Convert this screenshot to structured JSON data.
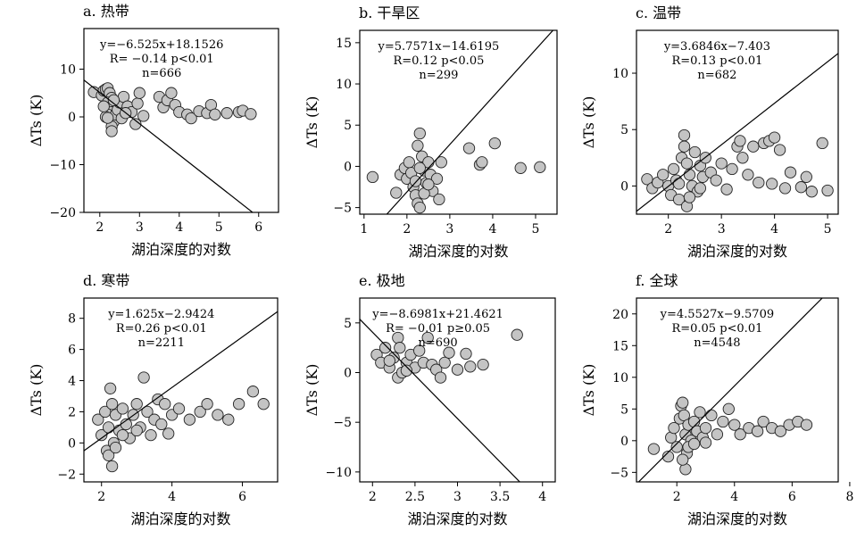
{
  "chart_data": [
    {
      "type": "scatter",
      "panel": "a",
      "title": "a. 热带",
      "xlabel": "湖泊深度的对数",
      "ylabel": "ΔTs (K)",
      "xlim": [
        1.6,
        6.5
      ],
      "ylim": [
        -20,
        18.5
      ],
      "xticks": [
        2,
        3,
        4,
        5,
        6
      ],
      "yticks": [
        -20,
        -10,
        0,
        10
      ],
      "regression": {
        "slope": -6.525,
        "intercept": 18.1526
      },
      "equation": {
        "line1": "y=−6.525x+18.1526",
        "line2": "R= −0.14 p<0.01",
        "line3": "n=666"
      },
      "points": [
        [
          1.85,
          5.2
        ],
        [
          2.05,
          4.5
        ],
        [
          2.1,
          5.5
        ],
        [
          2.15,
          5.8
        ],
        [
          2.2,
          6.0
        ],
        [
          2.25,
          5.0
        ],
        [
          2.3,
          4.0
        ],
        [
          2.2,
          3.0
        ],
        [
          2.25,
          2.0
        ],
        [
          2.3,
          1.0
        ],
        [
          2.2,
          0.5
        ],
        [
          2.15,
          0.0
        ],
        [
          2.3,
          -0.5
        ],
        [
          2.35,
          -1.0
        ],
        [
          2.3,
          -2.0
        ],
        [
          2.3,
          -3.0
        ],
        [
          2.4,
          0.5
        ],
        [
          2.45,
          1.5
        ],
        [
          2.5,
          3.0
        ],
        [
          2.6,
          4.2
        ],
        [
          2.7,
          2.2
        ],
        [
          2.8,
          1.0
        ],
        [
          2.9,
          -1.5
        ],
        [
          2.95,
          2.8
        ],
        [
          3.1,
          0.2
        ],
        [
          3.0,
          5.0
        ],
        [
          2.55,
          -0.3
        ],
        [
          2.65,
          0.8
        ],
        [
          2.2,
          -0.2
        ],
        [
          2.1,
          2.2
        ],
        [
          2.35,
          3.5
        ],
        [
          3.5,
          4.2
        ],
        [
          3.6,
          2.0
        ],
        [
          3.7,
          3.5
        ],
        [
          3.8,
          5.0
        ],
        [
          3.9,
          2.5
        ],
        [
          4.0,
          1.0
        ],
        [
          4.2,
          0.5
        ],
        [
          4.3,
          -0.3
        ],
        [
          4.5,
          1.2
        ],
        [
          4.7,
          0.8
        ],
        [
          4.8,
          2.5
        ],
        [
          4.9,
          0.5
        ],
        [
          5.2,
          0.8
        ],
        [
          5.5,
          1.0
        ],
        [
          5.6,
          1.3
        ],
        [
          5.8,
          0.6
        ]
      ],
      "dense_points": [
        [
          2.2,
          0.5
        ],
        [
          2.3,
          0.5
        ]
      ]
    },
    {
      "type": "scatter",
      "panel": "b",
      "title": "b. 干旱区",
      "xlabel": "湖泊深度的对数",
      "ylabel": "ΔTs (K)",
      "xlim": [
        0.9,
        5.5
      ],
      "ylim": [
        -5.8,
        16.5
      ],
      "xticks": [
        1,
        2,
        3,
        4,
        5
      ],
      "yticks": [
        -5,
        0,
        5,
        10,
        15
      ],
      "regression": {
        "slope": 5.7571,
        "intercept": -14.6195
      },
      "equation": {
        "line1": "y=5.7571x−14.6195",
        "line2": "R=0.12 p<0.05",
        "line3": "n=299"
      },
      "points": [
        [
          1.2,
          -1.3
        ],
        [
          1.75,
          -3.2
        ],
        [
          1.85,
          -1.0
        ],
        [
          1.95,
          -0.2
        ],
        [
          2.0,
          -1.5
        ],
        [
          2.05,
          0.5
        ],
        [
          2.1,
          -0.8
        ],
        [
          2.15,
          -2.5
        ],
        [
          2.2,
          -3.5
        ],
        [
          2.25,
          -4.5
        ],
        [
          2.3,
          -5.0
        ],
        [
          2.25,
          2.5
        ],
        [
          2.3,
          4.0
        ],
        [
          2.35,
          1.2
        ],
        [
          2.4,
          -0.5
        ],
        [
          2.45,
          -2.0
        ],
        [
          2.5,
          0.5
        ],
        [
          2.55,
          -1.0
        ],
        [
          2.6,
          -3.0
        ],
        [
          2.7,
          -1.5
        ],
        [
          2.75,
          -4.0
        ],
        [
          2.8,
          0.5
        ],
        [
          2.2,
          -1.8
        ],
        [
          2.3,
          -0.2
        ],
        [
          2.4,
          -3.3
        ],
        [
          2.5,
          -2.2
        ],
        [
          3.45,
          2.2
        ],
        [
          3.7,
          0.2
        ],
        [
          3.75,
          0.5
        ],
        [
          4.05,
          2.8
        ],
        [
          4.65,
          -0.2
        ],
        [
          5.1,
          -0.1
        ]
      ]
    },
    {
      "type": "scatter",
      "panel": "c",
      "title": "c. 温带",
      "xlabel": "湖泊深度的对数",
      "ylabel": "ΔTs (K)",
      "xlim": [
        1.4,
        5.2
      ],
      "ylim": [
        -2.5,
        13.8
      ],
      "xticks": [
        2,
        3,
        4,
        5
      ],
      "yticks": [
        0,
        5,
        10
      ],
      "regression": {
        "slope": 3.6846,
        "intercept": -7.403
      },
      "equation": {
        "line1": "y=3.6846x−7.403",
        "line2": "R=0.13 p<0.01",
        "line3": "n=682"
      },
      "points": [
        [
          1.6,
          0.6
        ],
        [
          1.7,
          -0.2
        ],
        [
          1.8,
          0.3
        ],
        [
          1.9,
          1.0
        ],
        [
          2.0,
          0.0
        ],
        [
          2.05,
          -0.8
        ],
        [
          2.1,
          1.5
        ],
        [
          2.15,
          0.5
        ],
        [
          2.2,
          -1.2
        ],
        [
          2.25,
          2.5
        ],
        [
          2.3,
          4.5
        ],
        [
          2.3,
          3.5
        ],
        [
          2.35,
          -1.8
        ],
        [
          2.35,
          2.0
        ],
        [
          2.4,
          1.0
        ],
        [
          2.45,
          0.0
        ],
        [
          2.5,
          3.0
        ],
        [
          2.55,
          -0.5
        ],
        [
          2.6,
          1.8
        ],
        [
          2.65,
          0.8
        ],
        [
          2.7,
          2.5
        ],
        [
          2.8,
          1.2
        ],
        [
          2.9,
          0.5
        ],
        [
          3.0,
          2.0
        ],
        [
          3.1,
          -0.3
        ],
        [
          3.2,
          1.5
        ],
        [
          3.3,
          3.5
        ],
        [
          3.35,
          4.0
        ],
        [
          3.4,
          2.5
        ],
        [
          3.5,
          1.0
        ],
        [
          3.6,
          3.5
        ],
        [
          3.7,
          0.3
        ],
        [
          3.8,
          3.8
        ],
        [
          3.9,
          4.0
        ],
        [
          3.95,
          0.2
        ],
        [
          4.0,
          4.3
        ],
        [
          4.1,
          3.2
        ],
        [
          4.2,
          -0.2
        ],
        [
          4.3,
          1.2
        ],
        [
          4.5,
          -0.1
        ],
        [
          4.6,
          0.8
        ],
        [
          4.7,
          -0.5
        ],
        [
          4.9,
          3.8
        ],
        [
          5.0,
          -0.4
        ],
        [
          2.2,
          0.2
        ],
        [
          2.4,
          -1.0
        ],
        [
          2.6,
          -0.2
        ]
      ]
    },
    {
      "type": "scatter",
      "panel": "d",
      "title": "d. 寒带",
      "xlabel": "湖泊深度的对数",
      "ylabel": "ΔTs (K)",
      "xlim": [
        1.5,
        7.0
      ],
      "ylim": [
        -2.5,
        9.3
      ],
      "xticks": [
        2,
        4,
        6
      ],
      "yticks": [
        -2,
        0,
        2,
        4,
        6,
        8
      ],
      "regression": {
        "slope": 1.625,
        "intercept": -2.9424
      },
      "equation": {
        "line1": "y=1.625x−2.9424",
        "line2": "R=0.26 p<0.01",
        "line3": "n=2211"
      },
      "points": [
        [
          1.9,
          1.5
        ],
        [
          2.0,
          0.5
        ],
        [
          2.1,
          2.0
        ],
        [
          2.15,
          -0.5
        ],
        [
          2.2,
          1.0
        ],
        [
          2.25,
          3.5
        ],
        [
          2.3,
          2.5
        ],
        [
          2.3,
          -1.5
        ],
        [
          2.35,
          0.0
        ],
        [
          2.4,
          1.8
        ],
        [
          2.5,
          0.8
        ],
        [
          2.6,
          2.2
        ],
        [
          2.7,
          1.2
        ],
        [
          2.8,
          0.3
        ],
        [
          2.9,
          1.8
        ],
        [
          3.0,
          2.5
        ],
        [
          3.1,
          1.0
        ],
        [
          3.2,
          4.2
        ],
        [
          3.3,
          2.0
        ],
        [
          3.5,
          1.5
        ],
        [
          3.6,
          2.8
        ],
        [
          3.7,
          1.2
        ],
        [
          3.8,
          2.5
        ],
        [
          4.0,
          1.8
        ],
        [
          4.2,
          2.2
        ],
        [
          4.5,
          1.5
        ],
        [
          4.8,
          2.0
        ],
        [
          5.0,
          2.5
        ],
        [
          5.3,
          1.8
        ],
        [
          5.6,
          1.5
        ],
        [
          5.9,
          2.5
        ],
        [
          6.3,
          3.3
        ],
        [
          6.6,
          2.5
        ],
        [
          2.2,
          -0.8
        ],
        [
          2.4,
          -0.3
        ],
        [
          2.6,
          0.5
        ],
        [
          3.0,
          0.8
        ],
        [
          3.4,
          0.5
        ],
        [
          3.9,
          0.6
        ]
      ]
    },
    {
      "type": "scatter",
      "panel": "e",
      "title": "e. 极地",
      "xlabel": "湖泊深度的对数",
      "ylabel": "ΔTs (K)",
      "xlim": [
        1.85,
        4.15
      ],
      "ylim": [
        -11,
        7.5
      ],
      "xticks": [
        2,
        2.5,
        3,
        3.5,
        4
      ],
      "yticks": [
        -10,
        -5,
        0,
        5
      ],
      "regression": {
        "slope": -8.6981,
        "intercept": 21.4621
      },
      "equation": {
        "line1": "y=−8.6981x+21.4621",
        "line2": "R= −0.01 p≥0.05",
        "line3": "n=690"
      },
      "points": [
        [
          2.05,
          1.8
        ],
        [
          2.1,
          1.0
        ],
        [
          2.15,
          2.5
        ],
        [
          2.2,
          0.5
        ],
        [
          2.25,
          1.5
        ],
        [
          2.3,
          3.5
        ],
        [
          2.3,
          -0.5
        ],
        [
          2.32,
          2.5
        ],
        [
          2.35,
          0.0
        ],
        [
          2.4,
          1.0
        ],
        [
          2.45,
          1.8
        ],
        [
          2.5,
          0.5
        ],
        [
          2.55,
          2.2
        ],
        [
          2.6,
          1.0
        ],
        [
          2.65,
          3.5
        ],
        [
          2.7,
          0.8
        ],
        [
          2.75,
          0.3
        ],
        [
          2.8,
          -0.5
        ],
        [
          2.85,
          1.0
        ],
        [
          2.9,
          2.0
        ],
        [
          3.0,
          0.3
        ],
        [
          3.1,
          1.9
        ],
        [
          3.15,
          0.6
        ],
        [
          3.3,
          0.8
        ],
        [
          3.7,
          3.8
        ],
        [
          2.2,
          1.2
        ],
        [
          2.4,
          0.2
        ]
      ]
    },
    {
      "type": "scatter",
      "panel": "f",
      "title": "f. 全球",
      "xlabel": "湖泊深度的对数",
      "ylabel": "ΔTs (K)",
      "xlim": [
        0.6,
        7.6
      ],
      "ylim": [
        -6.5,
        22.5
      ],
      "xticks": [
        2,
        4,
        6,
        8
      ],
      "yticks": [
        -5,
        0,
        5,
        10,
        15,
        20
      ],
      "regression": {
        "slope": 4.5527,
        "intercept": -9.5709
      },
      "equation": {
        "line1": "y=4.5527x−9.5709",
        "line2": "R=0.05 p<0.01",
        "line3": "n=4548"
      },
      "points": [
        [
          1.2,
          -1.3
        ],
        [
          1.7,
          -2.5
        ],
        [
          1.8,
          0.5
        ],
        [
          1.9,
          2.0
        ],
        [
          2.0,
          -1.0
        ],
        [
          2.1,
          3.5
        ],
        [
          2.15,
          5.5
        ],
        [
          2.2,
          6.0
        ],
        [
          2.25,
          4.0
        ],
        [
          2.3,
          1.0
        ],
        [
          2.3,
          -4.5
        ],
        [
          2.35,
          -2.0
        ],
        [
          2.4,
          2.5
        ],
        [
          2.5,
          0.0
        ],
        [
          2.6,
          3.0
        ],
        [
          2.7,
          1.5
        ],
        [
          2.8,
          4.5
        ],
        [
          2.9,
          0.5
        ],
        [
          3.0,
          2.0
        ],
        [
          3.2,
          4.0
        ],
        [
          3.4,
          1.0
        ],
        [
          3.6,
          3.0
        ],
        [
          3.8,
          5.0
        ],
        [
          4.0,
          2.5
        ],
        [
          4.2,
          1.0
        ],
        [
          4.5,
          2.0
        ],
        [
          4.8,
          1.5
        ],
        [
          5.0,
          3.0
        ],
        [
          5.3,
          2.0
        ],
        [
          5.6,
          1.5
        ],
        [
          5.9,
          2.5
        ],
        [
          6.2,
          3.0
        ],
        [
          6.5,
          2.5
        ],
        [
          2.2,
          -3.0
        ],
        [
          2.4,
          -1.0
        ],
        [
          2.6,
          -0.5
        ],
        [
          3.0,
          -0.3
        ]
      ]
    }
  ]
}
